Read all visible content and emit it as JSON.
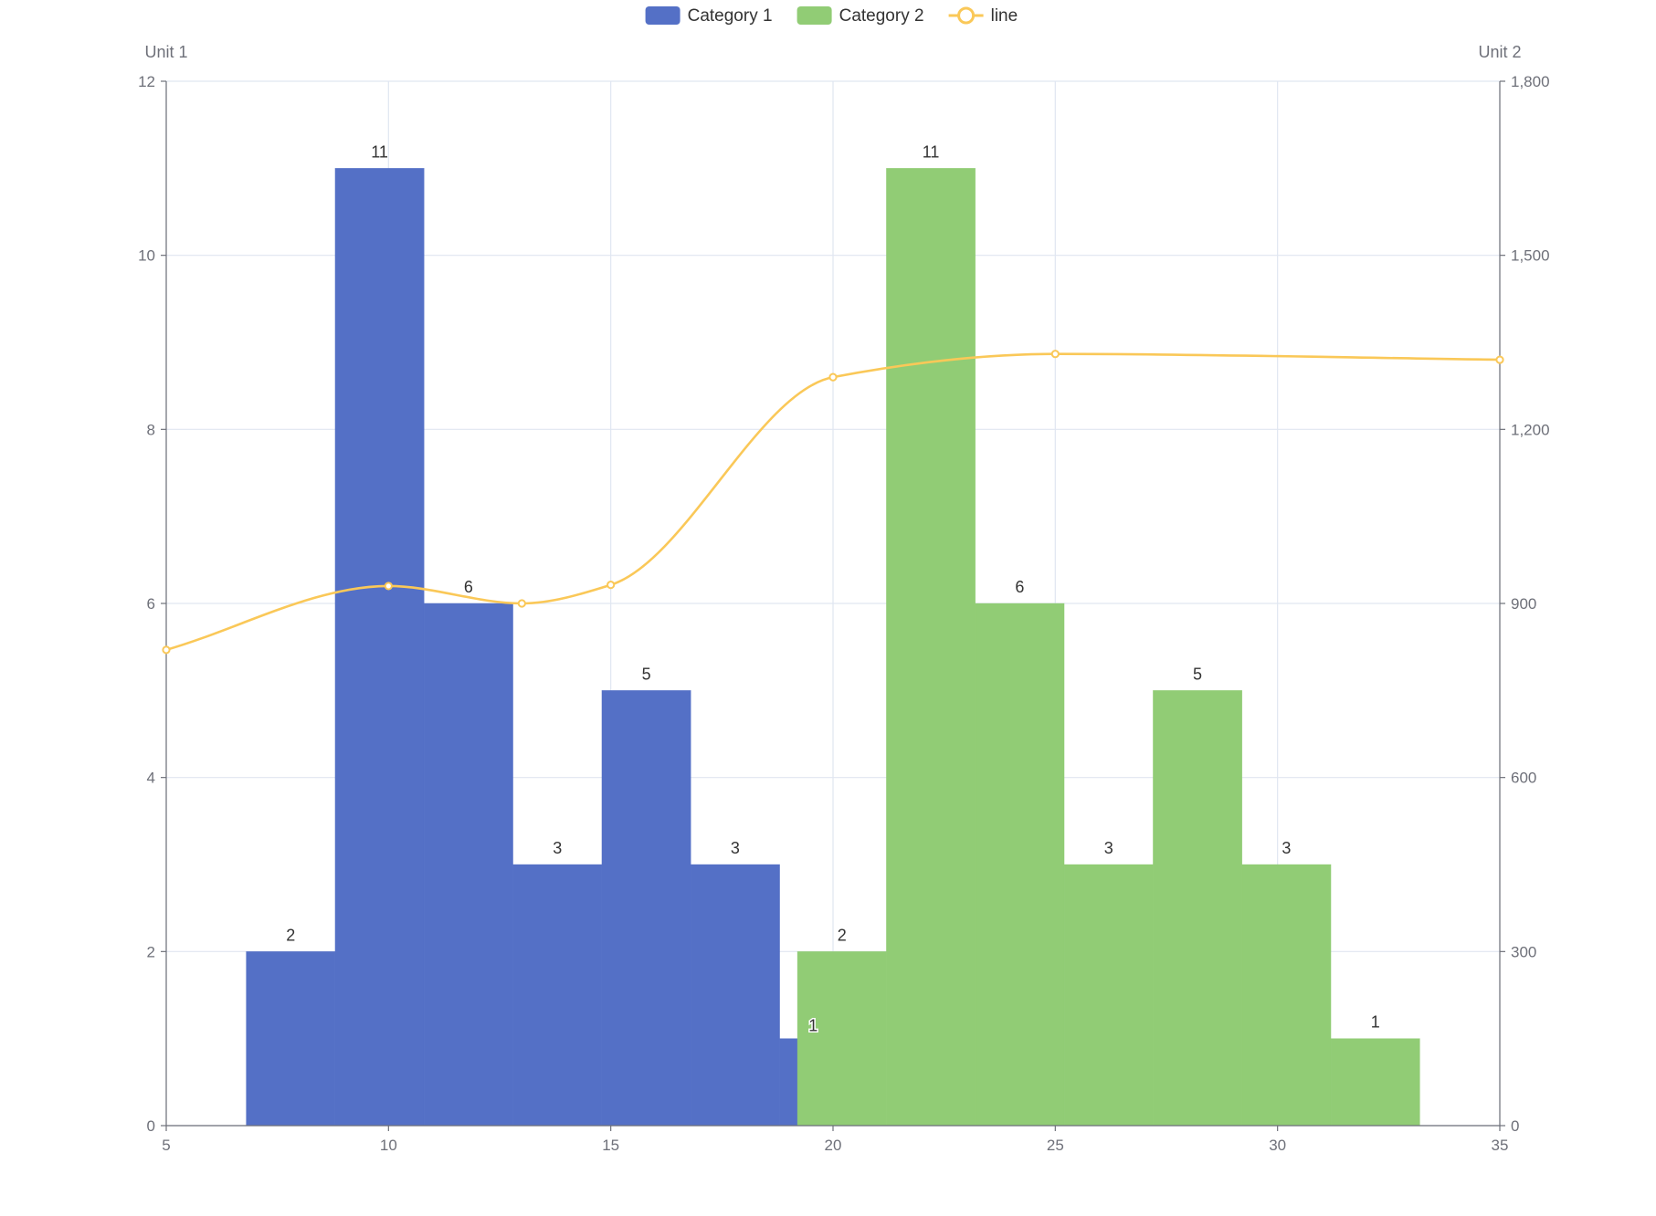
{
  "chart_data": {
    "type": "bar",
    "legend": {
      "placement": "top-center",
      "items": [
        {
          "label": "Category 1",
          "color": "#5470c6",
          "kind": "bar"
        },
        {
          "label": "Category 2",
          "color": "#91cc75",
          "kind": "bar"
        },
        {
          "label": "line",
          "color": "#fac858",
          "kind": "line"
        }
      ]
    },
    "x_axis": {
      "min": 5,
      "max": 35,
      "ticks": [
        5,
        10,
        15,
        20,
        25,
        30,
        35
      ],
      "grid": true
    },
    "y_axis_left": {
      "name": "Unit 1",
      "min": 0,
      "max": 12,
      "ticks": [
        0,
        2,
        4,
        6,
        8,
        10,
        12
      ],
      "tick_labels": [
        "0",
        "2",
        "4",
        "6",
        "8",
        "10",
        "12"
      ],
      "grid": true
    },
    "y_axis_right": {
      "name": "Unit 2",
      "min": 0,
      "max": 1800,
      "ticks": [
        0,
        300,
        600,
        900,
        1200,
        1500,
        1800
      ],
      "tick_labels": [
        "0",
        "300",
        "600",
        "900",
        "1,200",
        "1,500",
        "1,800"
      ]
    },
    "series": [
      {
        "name": "Category 1",
        "type": "histogram",
        "color": "#5470c6",
        "bins": [
          {
            "x0": 6.8,
            "x1": 8.8,
            "value": 2,
            "label": "2"
          },
          {
            "x0": 8.8,
            "x1": 10.8,
            "value": 11,
            "label": "11"
          },
          {
            "x0": 10.8,
            "x1": 12.8,
            "value": 6,
            "label": "6"
          },
          {
            "x0": 12.8,
            "x1": 14.8,
            "value": 3,
            "label": "3"
          },
          {
            "x0": 14.8,
            "x1": 16.8,
            "value": 5,
            "label": "5"
          },
          {
            "x0": 16.8,
            "x1": 18.8,
            "value": 3,
            "label": "3"
          },
          {
            "x0": 18.8,
            "x1": 20.8,
            "value": 1,
            "label": "1"
          }
        ]
      },
      {
        "name": "Category 2",
        "type": "histogram",
        "color": "#91cc75",
        "bins": [
          {
            "x0": 19.2,
            "x1": 21.2,
            "value": 2,
            "label": "2"
          },
          {
            "x0": 21.2,
            "x1": 23.2,
            "value": 11,
            "label": "11"
          },
          {
            "x0": 23.2,
            "x1": 25.2,
            "value": 6,
            "label": "6"
          },
          {
            "x0": 25.2,
            "x1": 27.2,
            "value": 3,
            "label": "3"
          },
          {
            "x0": 27.2,
            "x1": 29.2,
            "value": 5,
            "label": "5"
          },
          {
            "x0": 29.2,
            "x1": 31.2,
            "value": 3,
            "label": "3"
          },
          {
            "x0": 31.2,
            "x1": 33.2,
            "value": 1,
            "label": "1"
          }
        ]
      },
      {
        "name": "line",
        "type": "line",
        "axis": "right",
        "smooth": true,
        "color": "#fac858",
        "points": [
          {
            "x": 5,
            "y": 820
          },
          {
            "x": 10,
            "y": 930
          },
          {
            "x": 13,
            "y": 900
          },
          {
            "x": 15,
            "y": 932
          },
          {
            "x": 20,
            "y": 1290
          },
          {
            "x": 25,
            "y": 1330
          },
          {
            "x": 35,
            "y": 1320
          }
        ]
      }
    ]
  }
}
